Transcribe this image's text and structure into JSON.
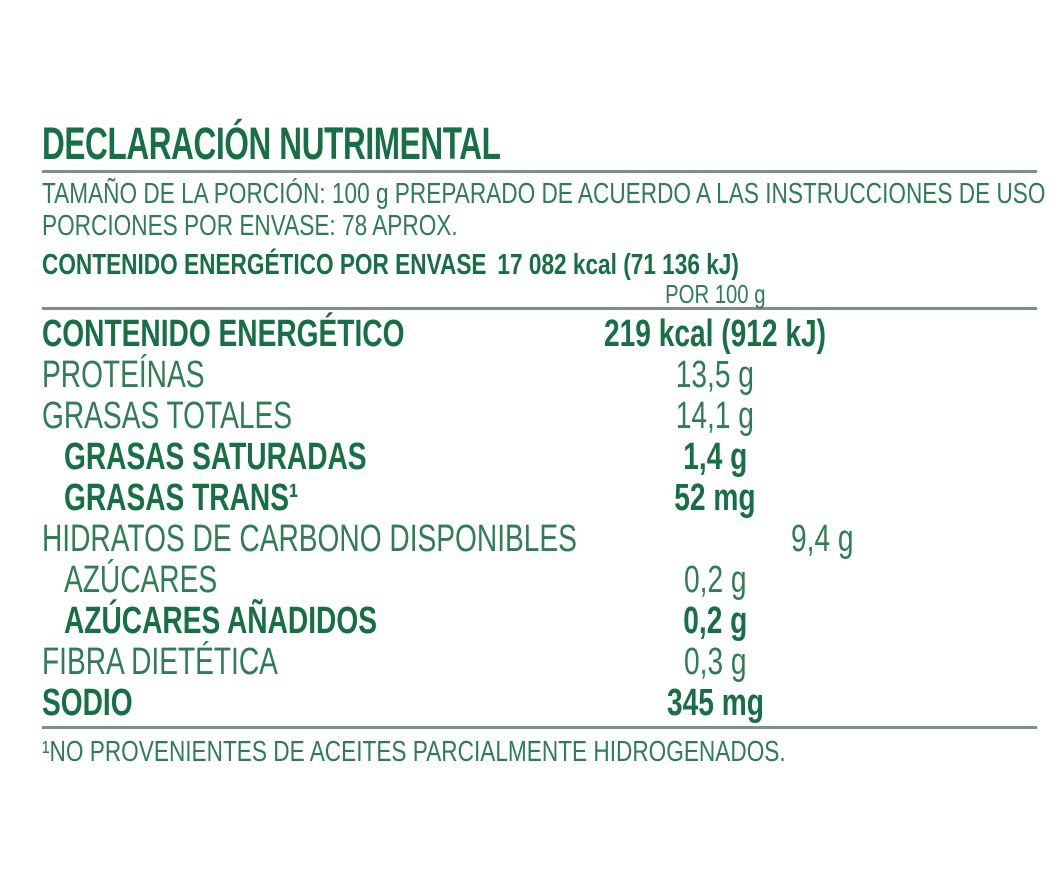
{
  "label": {
    "title": "DECLARACIÓN NUTRIMENTAL",
    "serving": {
      "line1": "TAMAÑO DE LA PORCIÓN: 100 g PREPARADO DE ACUERDO A LAS INSTRUCCIONES DE USO",
      "line2": "PORCIONES POR ENVASE: 78 APROX."
    },
    "energy_per_package": {
      "label": "CONTENIDO ENERGÉTICO POR ENVASE",
      "value": "17 082 kcal (71 136 kJ)"
    },
    "column_header": "POR 100 g",
    "rows": [
      {
        "name": "CONTENIDO ENERGÉTICO",
        "value": "219 kcal (912 kJ)"
      },
      {
        "name": "PROTEÍNAS",
        "value": "13,5 g"
      },
      {
        "name": "GRASAS TOTALES",
        "value": "14,1 g"
      },
      {
        "name": "GRASAS SATURADAS",
        "value": "1,4 g"
      },
      {
        "name": "GRASAS TRANS¹",
        "value": "52 mg"
      },
      {
        "name": "HIDRATOS DE CARBONO DISPONIBLES",
        "value": "9,4 g"
      },
      {
        "name": "AZÚCARES",
        "value": "0,2 g"
      },
      {
        "name": "AZÚCARES AÑADIDOS",
        "value": "0,2 g"
      },
      {
        "name": "FIBRA DIETÉTICA",
        "value": "0,3 g"
      },
      {
        "name": "SODIO",
        "value": "345 mg"
      }
    ],
    "footnote": "¹NO PROVENIENTES DE ACEITES PARCIALMENTE HIDROGENADOS.",
    "colors": {
      "bold_green": "#166f45",
      "regular_green": "#2f7c55",
      "rule_gray_green": "#7c9186",
      "background": "#ffffff"
    }
  }
}
